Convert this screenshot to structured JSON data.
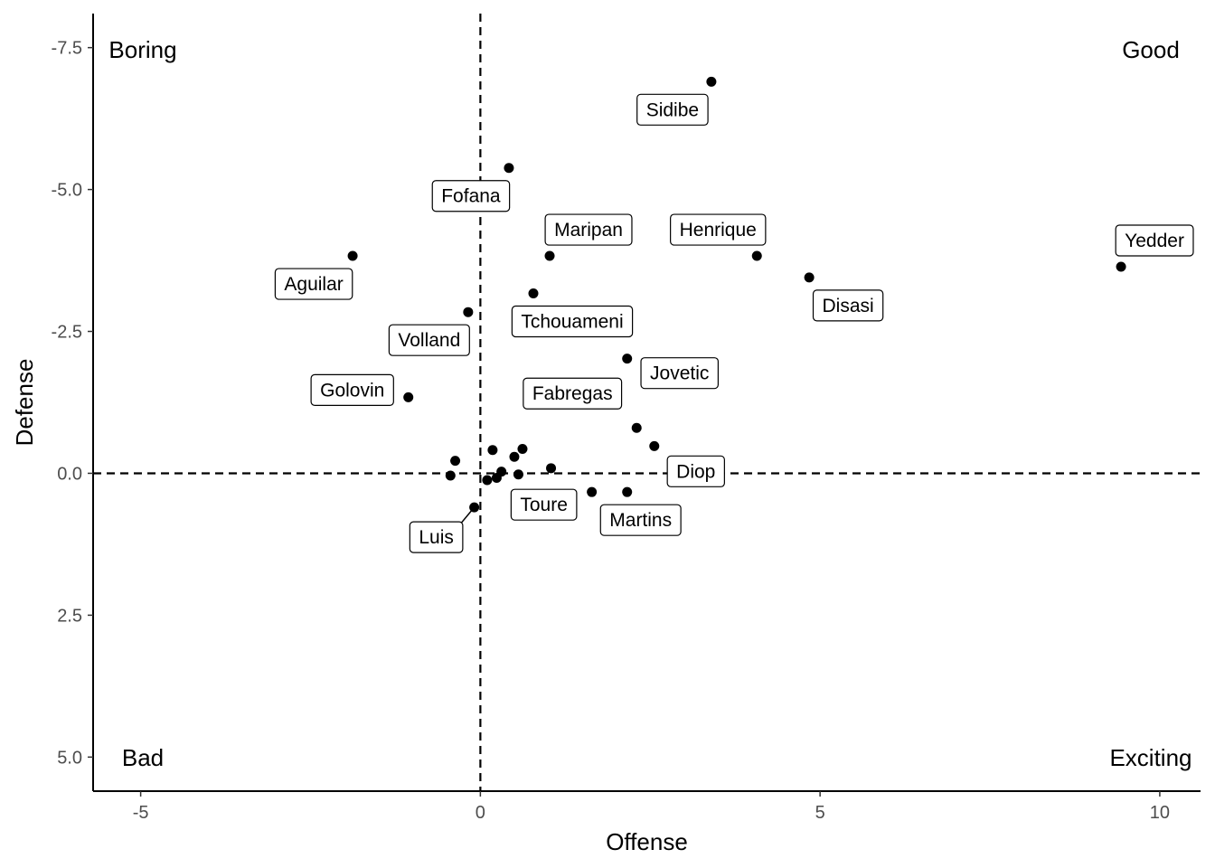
{
  "chart_data": {
    "type": "scatter",
    "xlabel": "Offense",
    "ylabel": "Defense",
    "xlim": [
      -5.7,
      10.6
    ],
    "ylim": [
      5.6,
      -8.1
    ],
    "y_reversed": true,
    "x_ticks": [
      -5,
      0,
      5,
      10
    ],
    "x_tick_labels": [
      "-5",
      "0",
      "5",
      "10"
    ],
    "y_ticks": [
      -7.5,
      -5.0,
      -2.5,
      0.0,
      2.5,
      5.0
    ],
    "y_tick_labels": [
      "-7.5",
      "-5.0",
      "-2.5",
      "0.0",
      "2.5",
      "5.0"
    ],
    "grid": false,
    "reference_lines": {
      "x": 0,
      "y": 0,
      "style": "dashed"
    },
    "quadrant_labels": {
      "top_left": "Boring",
      "top_right": "Good",
      "bottom_left": "Bad",
      "bottom_right": "Exciting"
    },
    "points": [
      {
        "label": "Sidibe",
        "x": 3.4,
        "y": -6.9
      },
      {
        "label": "Fofana",
        "x": 0.42,
        "y": -5.38
      },
      {
        "label": "Yedder",
        "x": 9.43,
        "y": -3.64
      },
      {
        "label": "Aguilar",
        "x": -1.88,
        "y": -3.83
      },
      {
        "label": "Maripan",
        "x": 1.02,
        "y": -3.83
      },
      {
        "label": "Henrique",
        "x": 4.07,
        "y": -3.83
      },
      {
        "label": "Disasi",
        "x": 4.84,
        "y": -3.45
      },
      {
        "label": "Tchouameni",
        "x": 0.78,
        "y": -3.17
      },
      {
        "label": "Volland",
        "x": -0.18,
        "y": -2.84
      },
      {
        "label": "Jovetic",
        "x": 2.16,
        "y": -2.02
      },
      {
        "label": "Golovin",
        "x": -1.06,
        "y": -1.34
      },
      {
        "label": "Fabregas",
        "x": 2.3,
        "y": -0.8
      },
      {
        "label": "Diop",
        "x": 2.56,
        "y": -0.48
      },
      {
        "label": "Toure",
        "x": 1.64,
        "y": 0.33
      },
      {
        "label": "Martins",
        "x": 2.16,
        "y": 0.33
      },
      {
        "label": "Luis",
        "x": -0.09,
        "y": 0.6
      },
      {
        "label": "",
        "x": 0.62,
        "y": -0.43
      },
      {
        "label": "",
        "x": 0.18,
        "y": -0.41
      },
      {
        "label": "",
        "x": 0.5,
        "y": -0.29
      },
      {
        "label": "",
        "x": -0.37,
        "y": -0.22
      },
      {
        "label": "",
        "x": 1.04,
        "y": -0.09
      },
      {
        "label": "",
        "x": 0.31,
        "y": -0.03
      },
      {
        "label": "",
        "x": 0.56,
        "y": 0.02
      },
      {
        "label": "",
        "x": -0.44,
        "y": 0.04
      },
      {
        "label": "",
        "x": 0.24,
        "y": 0.08
      },
      {
        "label": "",
        "x": 0.1,
        "y": 0.12
      }
    ]
  }
}
